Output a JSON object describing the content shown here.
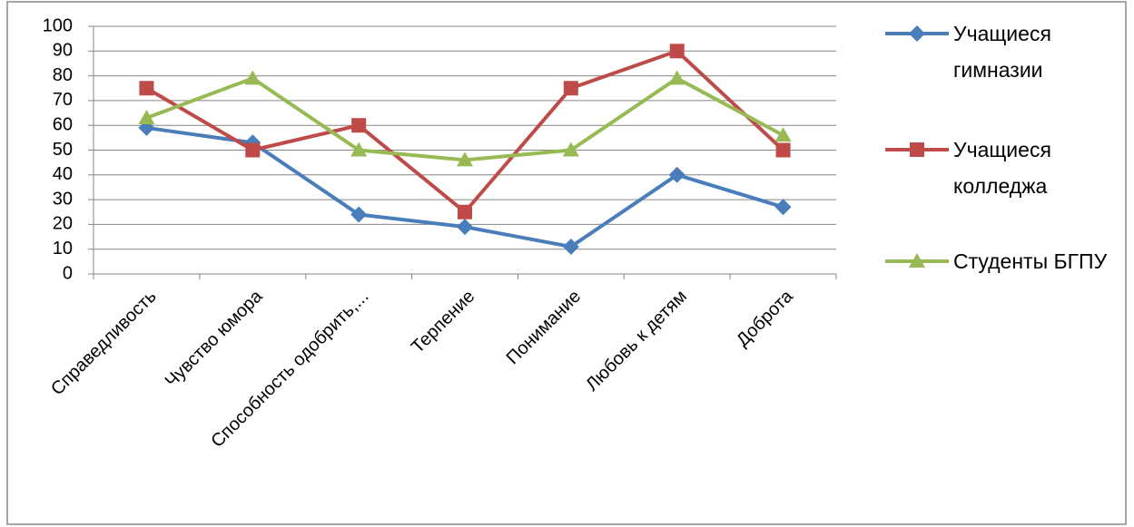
{
  "chart_data": {
    "type": "line",
    "categories": [
      "Справедливость",
      "Чувство юмора",
      "Способность одобрить,...",
      "Терпение",
      "Понимание",
      "Любовь к детям",
      "Доброта"
    ],
    "series": [
      {
        "name": "Учащиеся гимназии",
        "color": "#4a7ebb",
        "marker": "diamond",
        "values": [
          59,
          53,
          24,
          19,
          11,
          40,
          27
        ]
      },
      {
        "name": "Учащиеся колледжа",
        "color": "#be4b48",
        "marker": "square",
        "values": [
          75,
          50,
          60,
          25,
          75,
          90,
          50
        ]
      },
      {
        "name": "Студенты БГПУ",
        "color": "#98b954",
        "marker": "triangle",
        "values": [
          63,
          79,
          50,
          46,
          50,
          79,
          56
        ]
      }
    ],
    "ylim": [
      0,
      100
    ],
    "yticks": [
      0,
      10,
      20,
      30,
      40,
      50,
      60,
      70,
      80,
      90,
      100
    ],
    "grid": true,
    "legend": "right"
  }
}
